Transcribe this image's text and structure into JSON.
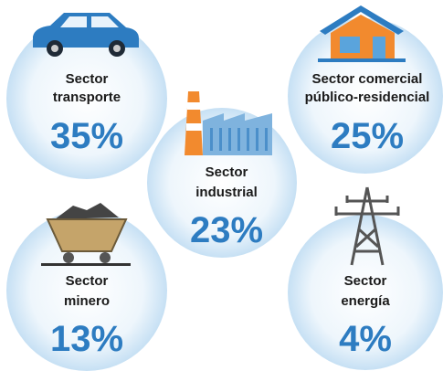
{
  "sectors": [
    {
      "lines": [
        "Sector",
        "transporte"
      ],
      "value": "35%"
    },
    {
      "lines": [
        "Sector comercial",
        "público-residencial"
      ],
      "value": "25%"
    },
    {
      "lines": [
        "Sector",
        "industrial"
      ],
      "value": "23%"
    },
    {
      "lines": [
        "Sector",
        "minero"
      ],
      "value": "13%"
    },
    {
      "lines": [
        "Sector",
        "energía"
      ],
      "value": "4%"
    }
  ]
}
